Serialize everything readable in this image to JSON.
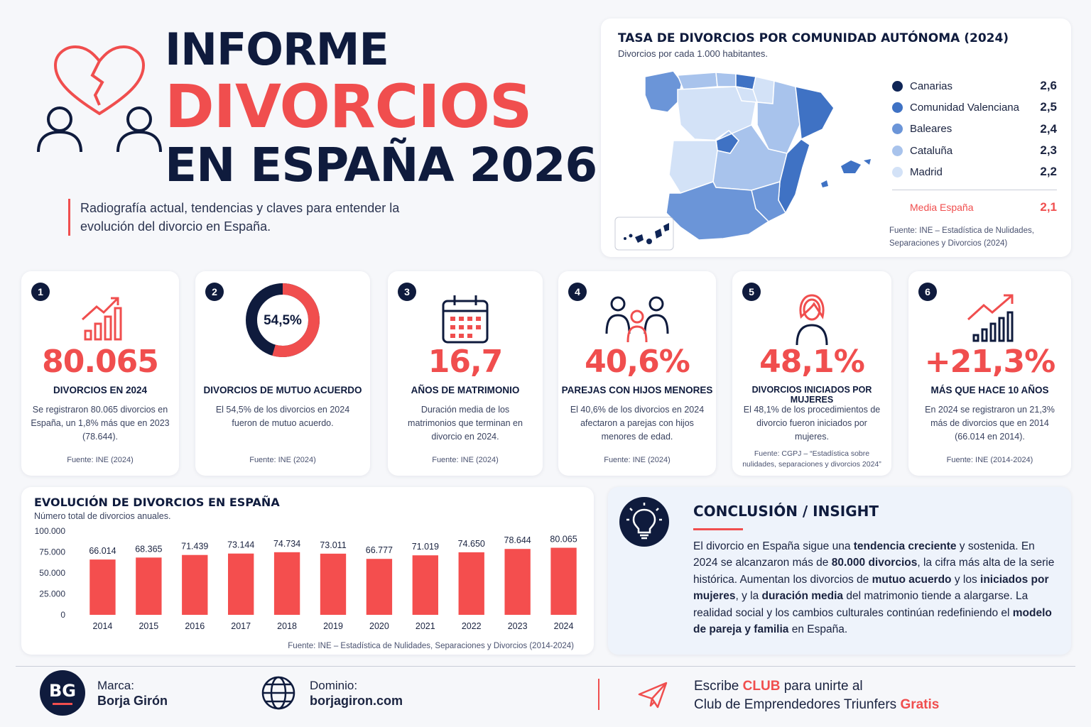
{
  "header": {
    "title_line1": "INFORME",
    "title_line2": "DIVORCIOS",
    "title_line3": "EN ESPAÑA 2026",
    "subtitle": "Radiografía actual, tendencias y claves para entender la evolución del divorcio en España."
  },
  "map": {
    "title": "TASA DE DIVORCIOS POR COMUNIDAD AUTÓNOMA (2024)",
    "subtitle": "Divorcios por cada 1.000 habitantes.",
    "legend": [
      {
        "name": "Canarias",
        "value": "2,6",
        "color": "#0f2556"
      },
      {
        "name": "Comunidad Valenciana",
        "value": "2,5",
        "color": "#3f72c4"
      },
      {
        "name": "Baleares",
        "value": "2,4",
        "color": "#6b95d8"
      },
      {
        "name": "Cataluña",
        "value": "2,3",
        "color": "#a8c3ec"
      },
      {
        "name": "Madrid",
        "value": "2,2",
        "color": "#d3e2f7"
      }
    ],
    "average_label": "Media España",
    "average_value": "2,1",
    "source": "Fuente: INE – Estadística de Nulidades, Separaciones y Divorcios (2024)"
  },
  "stats": [
    {
      "num": "1",
      "icon": "growth-chart-icon",
      "value": "80.065",
      "label": "DIVORCIOS EN 2024",
      "desc": "Se registraron 80.065 divorcios en España, un 1,8% más que en 2023 (78.644).",
      "source": "Fuente: INE (2024)"
    },
    {
      "num": "2",
      "icon": "donut-chart-icon",
      "value": "54,5%",
      "label": "DIVORCIOS DE MUTUO ACUERDO",
      "desc": "El 54,5% de los divorcios en 2024 fueron de mutuo acuerdo.",
      "source": "Fuente: INE (2024)",
      "share": 54.5
    },
    {
      "num": "3",
      "icon": "calendar-icon",
      "value": "16,7",
      "label": "AÑOS DE MATRIMONIO",
      "desc": "Duración media de los matrimonios que terminan en divorcio en 2024.",
      "source": "Fuente: INE (2024)"
    },
    {
      "num": "4",
      "icon": "family-icon",
      "value": "40,6%",
      "label": "PAREJAS CON HIJOS MENORES",
      "desc": "El 40,6% de los divorcios en 2024 afectaron a parejas con hijos menores de edad.",
      "source": "Fuente: INE (2024)"
    },
    {
      "num": "5",
      "icon": "woman-icon",
      "value": "48,1%",
      "label": "DIVORCIOS INICIADOS POR MUJERES",
      "desc": "El 48,1% de los procedimientos de divorcio fueron iniciados por mujeres.",
      "source": "Fuente: CGPJ – “Estadística sobre nulidades, separaciones y divorcios 2024”"
    },
    {
      "num": "6",
      "icon": "trend-up-icon",
      "value": "+21,3%",
      "label": "MÁS QUE HACE 10 AÑOS",
      "desc": "En 2024 se registraron un 21,3% más de divorcios que en 2014 (66.014 en 2014).",
      "source": "Fuente: INE (2014-2024)"
    }
  ],
  "chart": {
    "title": "EVOLUCIÓN DE DIVORCIOS EN ESPAÑA",
    "subtitle": "Número total de divorcios anuales.",
    "source": "Fuente: INE – Estadística de Nulidades, Separaciones y Divorcios (2014-2024)"
  },
  "chart_data": {
    "type": "bar",
    "categories": [
      "2014",
      "2015",
      "2016",
      "2017",
      "2018",
      "2019",
      "2020",
      "2021",
      "2022",
      "2023",
      "2024"
    ],
    "values": [
      66014,
      68365,
      71439,
      73144,
      74734,
      73011,
      66777,
      71019,
      74650,
      78644,
      80065
    ],
    "value_labels": [
      "66.014",
      "68.365",
      "71.439",
      "73.144",
      "74.734",
      "73.011",
      "66.777",
      "71.019",
      "74.650",
      "78.644",
      "80.065"
    ],
    "yticks": [
      0,
      25000,
      50000,
      75000,
      100000
    ],
    "ytick_labels": [
      "0",
      "25.000",
      "50.000",
      "75.000",
      "100.000"
    ],
    "ylim": [
      0,
      100000
    ],
    "title": "EVOLUCIÓN DE DIVORCIOS EN ESPAÑA",
    "color": "#f44e4e",
    "grid": false
  },
  "insight": {
    "title": "CONCLUSIÓN / INSIGHT",
    "segments": [
      {
        "t": "El divorcio en España sigue una ",
        "b": false
      },
      {
        "t": "tendencia creciente",
        "b": true
      },
      {
        "t": " y sostenida. En 2024 se alcanzaron más de ",
        "b": false
      },
      {
        "t": "80.000 divorcios",
        "b": true
      },
      {
        "t": ", la cifra más alta de la serie histórica. Aumentan los divorcios de ",
        "b": false
      },
      {
        "t": "mutuo acuerdo",
        "b": true
      },
      {
        "t": " y los ",
        "b": false
      },
      {
        "t": "iniciados por mujeres",
        "b": true
      },
      {
        "t": ", y la ",
        "b": false
      },
      {
        "t": "duración media",
        "b": true
      },
      {
        "t": " del matrimonio tiende a alargarse. La realidad social y los cambios culturales continúan redefiniendo el ",
        "b": false
      },
      {
        "t": "modelo de pareja y familia",
        "b": true
      },
      {
        "t": " en España.",
        "b": false
      }
    ]
  },
  "footer": {
    "logo_text": "BG",
    "brand_label": "Marca:",
    "brand_name": "Borja Girón",
    "domain_label": "Dominio:",
    "domain": "borjagiron.com",
    "cta_pre": "Escribe ",
    "cta_word": "CLUB",
    "cta_post": " para unirte al",
    "cta_line2": "Club de Emprendedores Triunfers ",
    "cta_free": "Gratis"
  },
  "colors": {
    "navy": "#0f1b3d",
    "accent_red": "#f04e4e",
    "card_bg": "#ffffff",
    "insight_bg": "#eef3fb"
  }
}
